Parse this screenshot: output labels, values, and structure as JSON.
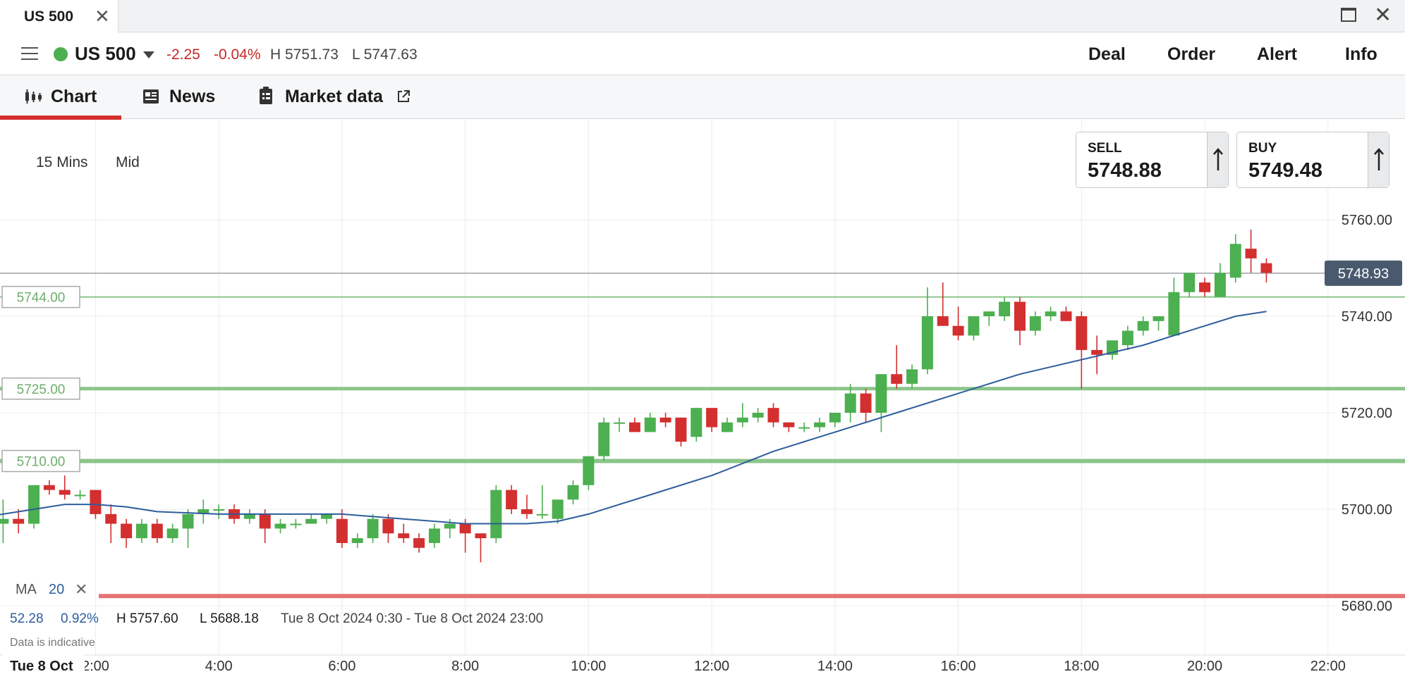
{
  "window": {
    "tab_title": "US 500",
    "close_glyph": "✕",
    "close_window_glyph": "✕"
  },
  "instrument": {
    "name": "US 500",
    "change": "-2.25",
    "change_pct": "-0.04%",
    "high": "H 5751.73",
    "low": "L 5747.63",
    "status_color": "#4caf50"
  },
  "actions": [
    "Deal",
    "Order",
    "Alert",
    "Info"
  ],
  "tabs": [
    {
      "label": "Chart",
      "icon": "candlestick-icon",
      "active": true
    },
    {
      "label": "News",
      "icon": "newspaper-icon"
    },
    {
      "label": "Market data",
      "icon": "clipboard-icon",
      "external_icon": "external-link-icon"
    }
  ],
  "chart_controls": {
    "interval": "15 Mins",
    "price_type": "Mid"
  },
  "sell": {
    "label": "SELL",
    "value": "5748.88"
  },
  "buy": {
    "label": "BUY",
    "value": "5749.48"
  },
  "indicator": {
    "name": "MA",
    "period": "20",
    "remove_glyph": "✕"
  },
  "stats": {
    "change": "52.28",
    "change_pct": "0.92%",
    "high": "H 5757.60",
    "low": "L 5688.18",
    "range": "Tue 8 Oct 2024 0:30 - Tue 8 Oct 2024 23:00"
  },
  "disclaimer": "Data is indicative",
  "date_label": "Tue 8 Oct",
  "colors": {
    "up": "#4caf50",
    "down": "#d32f2f",
    "ma": "#2d5d9b",
    "level_line": "#8bc58a",
    "alert_line": "#e57373",
    "current_tag": "#4a5a6e"
  },
  "chart_data": {
    "type": "candlestick",
    "instrument": "US 500",
    "interval": "15 Mins",
    "y_ticks": [
      "5680.00",
      "5700.00",
      "5720.00",
      "5740.00",
      "5760.00"
    ],
    "ylim": [
      5664,
      5784
    ],
    "x_ticks": [
      "2:00",
      "4:00",
      "6:00",
      "8:00",
      "10:00",
      "12:00",
      "14:00",
      "16:00",
      "18:00",
      "20:00",
      "22:00"
    ],
    "xlim_hours": [
      0.45,
      22.75
    ],
    "current_price": "5748.93",
    "horizontal_levels": [
      {
        "label": "5744.00",
        "value": 5744
      },
      {
        "label": "5725.00",
        "value": 5725
      },
      {
        "label": "5710.00",
        "value": 5710
      }
    ],
    "alert_level": 5682,
    "candles": [
      {
        "t": 0.5,
        "o": 5697,
        "h": 5702,
        "l": 5693,
        "c": 5698
      },
      {
        "t": 0.75,
        "o": 5698,
        "h": 5700,
        "l": 5695,
        "c": 5697
      },
      {
        "t": 1.0,
        "o": 5697,
        "h": 5705,
        "l": 5696,
        "c": 5705
      },
      {
        "t": 1.25,
        "o": 5705,
        "h": 5706,
        "l": 5703,
        "c": 5704
      },
      {
        "t": 1.5,
        "o": 5704,
        "h": 5707,
        "l": 5702,
        "c": 5703
      },
      {
        "t": 1.75,
        "o": 5703,
        "h": 5704,
        "l": 5702,
        "c": 5703
      },
      {
        "t": 2.0,
        "o": 5704,
        "h": 5704,
        "l": 5698,
        "c": 5699
      },
      {
        "t": 2.25,
        "o": 5699,
        "h": 5701,
        "l": 5693,
        "c": 5697
      },
      {
        "t": 2.5,
        "o": 5697,
        "h": 5698,
        "l": 5692,
        "c": 5694
      },
      {
        "t": 2.75,
        "o": 5694,
        "h": 5698,
        "l": 5693,
        "c": 5697
      },
      {
        "t": 3.0,
        "o": 5697,
        "h": 5698,
        "l": 5693,
        "c": 5694
      },
      {
        "t": 3.25,
        "o": 5694,
        "h": 5697,
        "l": 5693,
        "c": 5696
      },
      {
        "t": 3.5,
        "o": 5696,
        "h": 5700,
        "l": 5692,
        "c": 5699
      },
      {
        "t": 3.75,
        "o": 5699,
        "h": 5702,
        "l": 5697,
        "c": 5700
      },
      {
        "t": 4.0,
        "o": 5700,
        "h": 5701,
        "l": 5698,
        "c": 5700
      },
      {
        "t": 4.25,
        "o": 5700,
        "h": 5701,
        "l": 5697,
        "c": 5698
      },
      {
        "t": 4.5,
        "o": 5698,
        "h": 5700,
        "l": 5697,
        "c": 5699
      },
      {
        "t": 4.75,
        "o": 5699,
        "h": 5700,
        "l": 5693,
        "c": 5696
      },
      {
        "t": 5.0,
        "o": 5696,
        "h": 5698,
        "l": 5695,
        "c": 5697
      },
      {
        "t": 5.25,
        "o": 5697,
        "h": 5698,
        "l": 5696,
        "c": 5697
      },
      {
        "t": 5.5,
        "o": 5697,
        "h": 5699,
        "l": 5697,
        "c": 5698
      },
      {
        "t": 5.75,
        "o": 5698,
        "h": 5699,
        "l": 5697,
        "c": 5699
      },
      {
        "t": 6.0,
        "o": 5698,
        "h": 5700,
        "l": 5692,
        "c": 5693
      },
      {
        "t": 6.25,
        "o": 5693,
        "h": 5695,
        "l": 5692,
        "c": 5694
      },
      {
        "t": 6.5,
        "o": 5694,
        "h": 5699,
        "l": 5693,
        "c": 5698
      },
      {
        "t": 6.75,
        "o": 5698,
        "h": 5699,
        "l": 5693,
        "c": 5695
      },
      {
        "t": 7.0,
        "o": 5695,
        "h": 5697,
        "l": 5693,
        "c": 5694
      },
      {
        "t": 7.25,
        "o": 5694,
        "h": 5695,
        "l": 5691,
        "c": 5692
      },
      {
        "t": 7.5,
        "o": 5693,
        "h": 5697,
        "l": 5692,
        "c": 5696
      },
      {
        "t": 7.75,
        "o": 5696,
        "h": 5698,
        "l": 5694,
        "c": 5697
      },
      {
        "t": 8.0,
        "o": 5697,
        "h": 5698,
        "l": 5691,
        "c": 5695
      },
      {
        "t": 8.25,
        "o": 5695,
        "h": 5695,
        "l": 5689,
        "c": 5694
      },
      {
        "t": 8.5,
        "o": 5694,
        "h": 5705,
        "l": 5693,
        "c": 5704
      },
      {
        "t": 8.75,
        "o": 5704,
        "h": 5705,
        "l": 5699,
        "c": 5700
      },
      {
        "t": 9.0,
        "o": 5700,
        "h": 5703,
        "l": 5698,
        "c": 5699
      },
      {
        "t": 9.25,
        "o": 5699,
        "h": 5705,
        "l": 5698,
        "c": 5699
      },
      {
        "t": 9.5,
        "o": 5698,
        "h": 5702,
        "l": 5697,
        "c": 5702
      },
      {
        "t": 9.75,
        "o": 5702,
        "h": 5706,
        "l": 5701,
        "c": 5705
      },
      {
        "t": 10.0,
        "o": 5705,
        "h": 5711,
        "l": 5704,
        "c": 5711
      },
      {
        "t": 10.25,
        "o": 5711,
        "h": 5719,
        "l": 5710,
        "c": 5718
      },
      {
        "t": 10.5,
        "o": 5718,
        "h": 5719,
        "l": 5716,
        "c": 5718
      },
      {
        "t": 10.75,
        "o": 5718,
        "h": 5719,
        "l": 5716,
        "c": 5716
      },
      {
        "t": 11.0,
        "o": 5716,
        "h": 5720,
        "l": 5716,
        "c": 5719
      },
      {
        "t": 11.25,
        "o": 5719,
        "h": 5720,
        "l": 5717,
        "c": 5718
      },
      {
        "t": 11.5,
        "o": 5719,
        "h": 5719,
        "l": 5713,
        "c": 5714
      },
      {
        "t": 11.75,
        "o": 5715,
        "h": 5721,
        "l": 5714,
        "c": 5721
      },
      {
        "t": 12.0,
        "o": 5721,
        "h": 5721,
        "l": 5716,
        "c": 5717
      },
      {
        "t": 12.25,
        "o": 5716,
        "h": 5719,
        "l": 5716,
        "c": 5718
      },
      {
        "t": 12.5,
        "o": 5718,
        "h": 5722,
        "l": 5717,
        "c": 5719
      },
      {
        "t": 12.75,
        "o": 5719,
        "h": 5721,
        "l": 5718,
        "c": 5720
      },
      {
        "t": 13.0,
        "o": 5721,
        "h": 5722,
        "l": 5717,
        "c": 5718
      },
      {
        "t": 13.25,
        "o": 5718,
        "h": 5718,
        "l": 5716,
        "c": 5717
      },
      {
        "t": 13.5,
        "o": 5717,
        "h": 5718,
        "l": 5716,
        "c": 5717
      },
      {
        "t": 13.75,
        "o": 5717,
        "h": 5719,
        "l": 5716,
        "c": 5718
      },
      {
        "t": 14.0,
        "o": 5718,
        "h": 5720,
        "l": 5717,
        "c": 5720
      },
      {
        "t": 14.25,
        "o": 5720,
        "h": 5726,
        "l": 5718,
        "c": 5724
      },
      {
        "t": 14.5,
        "o": 5724,
        "h": 5725,
        "l": 5718,
        "c": 5720
      },
      {
        "t": 14.75,
        "o": 5720,
        "h": 5728,
        "l": 5716,
        "c": 5728
      },
      {
        "t": 15.0,
        "o": 5728,
        "h": 5734,
        "l": 5725,
        "c": 5726
      },
      {
        "t": 15.25,
        "o": 5726,
        "h": 5730,
        "l": 5725,
        "c": 5729
      },
      {
        "t": 15.5,
        "o": 5729,
        "h": 5746,
        "l": 5728,
        "c": 5740
      },
      {
        "t": 15.75,
        "o": 5740,
        "h": 5747,
        "l": 5738,
        "c": 5738
      },
      {
        "t": 16.0,
        "o": 5738,
        "h": 5742,
        "l": 5735,
        "c": 5736
      },
      {
        "t": 16.25,
        "o": 5736,
        "h": 5740,
        "l": 5735,
        "c": 5740
      },
      {
        "t": 16.5,
        "o": 5740,
        "h": 5741,
        "l": 5738,
        "c": 5741
      },
      {
        "t": 16.75,
        "o": 5740,
        "h": 5744,
        "l": 5739,
        "c": 5743
      },
      {
        "t": 17.0,
        "o": 5743,
        "h": 5744,
        "l": 5734,
        "c": 5737
      },
      {
        "t": 17.25,
        "o": 5737,
        "h": 5741,
        "l": 5736,
        "c": 5740
      },
      {
        "t": 17.5,
        "o": 5740,
        "h": 5742,
        "l": 5739,
        "c": 5741
      },
      {
        "t": 17.75,
        "o": 5741,
        "h": 5742,
        "l": 5739,
        "c": 5739
      },
      {
        "t": 18.0,
        "o": 5740,
        "h": 5741,
        "l": 5725,
        "c": 5733
      },
      {
        "t": 18.25,
        "o": 5733,
        "h": 5736,
        "l": 5728,
        "c": 5732
      },
      {
        "t": 18.5,
        "o": 5732,
        "h": 5735,
        "l": 5731,
        "c": 5735
      },
      {
        "t": 18.75,
        "o": 5734,
        "h": 5738,
        "l": 5733,
        "c": 5737
      },
      {
        "t": 19.0,
        "o": 5737,
        "h": 5740,
        "l": 5736,
        "c": 5739
      },
      {
        "t": 19.25,
        "o": 5739,
        "h": 5740,
        "l": 5737,
        "c": 5740
      },
      {
        "t": 19.5,
        "o": 5736,
        "h": 5748,
        "l": 5736,
        "c": 5745
      },
      {
        "t": 19.75,
        "o": 5745,
        "h": 5749,
        "l": 5744,
        "c": 5749
      },
      {
        "t": 20.0,
        "o": 5747,
        "h": 5748,
        "l": 5744,
        "c": 5745
      },
      {
        "t": 20.25,
        "o": 5744,
        "h": 5751,
        "l": 5744,
        "c": 5749
      },
      {
        "t": 20.5,
        "o": 5748,
        "h": 5757,
        "l": 5747,
        "c": 5755
      },
      {
        "t": 20.75,
        "o": 5754,
        "h": 5758,
        "l": 5749,
        "c": 5752
      },
      {
        "t": 21.0,
        "o": 5751,
        "h": 5752,
        "l": 5747,
        "c": 5749
      }
    ],
    "ma_series": {
      "name": "MA 20",
      "t": [
        0.0,
        0.5,
        1.0,
        1.5,
        2.0,
        2.5,
        3.0,
        4.0,
        5.0,
        6.0,
        7.0,
        8.0,
        9.0,
        9.5,
        10.0,
        11.0,
        12.0,
        13.0,
        14.0,
        15.0,
        16.0,
        17.0,
        18.0,
        19.0,
        20.0,
        20.5,
        21.0
      ],
      "value": [
        5698,
        5699,
        5700,
        5701,
        5701,
        5700.5,
        5699.5,
        5699,
        5699,
        5699,
        5698,
        5697,
        5697,
        5697.5,
        5699,
        5703,
        5707,
        5712,
        5716,
        5720,
        5724,
        5728,
        5731,
        5734,
        5738,
        5740,
        5741
      ]
    }
  }
}
